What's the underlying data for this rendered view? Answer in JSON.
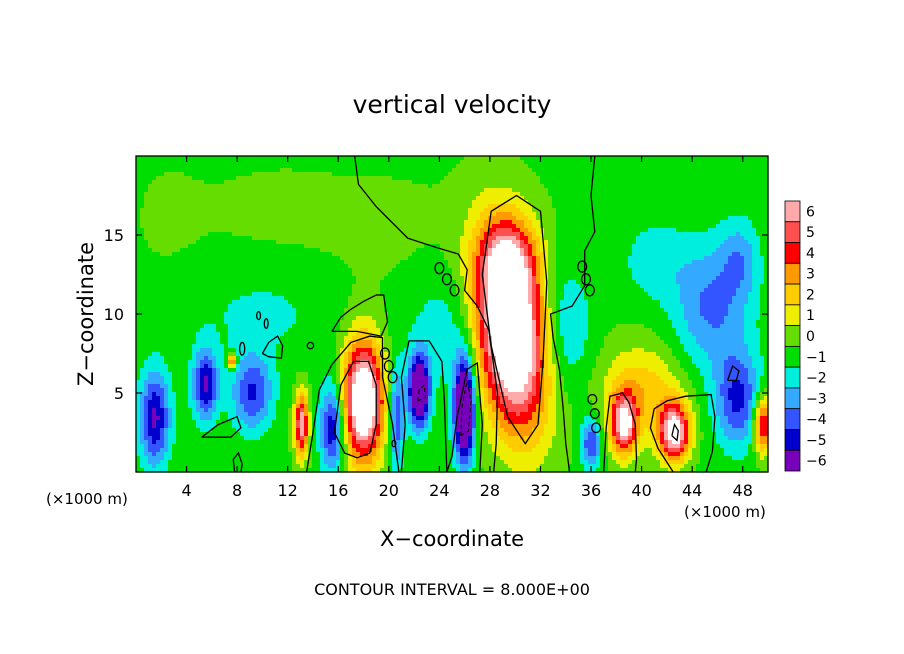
{
  "chart_data": {
    "type": "heatmap",
    "title": "vertical velocity",
    "xlabel": "X−coordinate",
    "ylabel": "Z−coordinate",
    "x_unit_left": "(×1000 m)",
    "x_unit_right": "(×1000 m)",
    "xlim": [
      0,
      50
    ],
    "ylim": [
      0,
      20
    ],
    "x_ticks": [
      {
        "value": 4,
        "label": "4"
      },
      {
        "value": 8,
        "label": "8"
      },
      {
        "value": 12,
        "label": "12"
      },
      {
        "value": 16,
        "label": "16"
      },
      {
        "value": 20,
        "label": "20"
      },
      {
        "value": 24,
        "label": "24"
      },
      {
        "value": 28,
        "label": "28"
      },
      {
        "value": 32,
        "label": "32"
      },
      {
        "value": 36,
        "label": "36"
      },
      {
        "value": 40,
        "label": "40"
      },
      {
        "value": 44,
        "label": "44"
      },
      {
        "value": 48,
        "label": "48"
      }
    ],
    "y_ticks": [
      {
        "value": 5,
        "label": "5"
      },
      {
        "value": 10,
        "label": "10"
      },
      {
        "value": 15,
        "label": "15"
      }
    ],
    "footer": "CONTOUR INTERVAL = 8.000E+00",
    "colorbar": {
      "min": -6,
      "max": 6,
      "labels": [
        {
          "value": 6,
          "label": "6"
        },
        {
          "value": 5,
          "label": "5"
        },
        {
          "value": 4,
          "label": "4"
        },
        {
          "value": 3,
          "label": "3"
        },
        {
          "value": 2,
          "label": "2"
        },
        {
          "value": 1,
          "label": "1"
        },
        {
          "value": 0,
          "label": "0"
        },
        {
          "value": -1,
          "label": "−1"
        },
        {
          "value": -2,
          "label": "−2"
        },
        {
          "value": -3,
          "label": "−3"
        },
        {
          "value": -4,
          "label": "−4"
        },
        {
          "value": -5,
          "label": "−5"
        },
        {
          "value": -6,
          "label": "−6"
        }
      ],
      "bands": [
        {
          "from": 5.5,
          "to": 6.5,
          "color": "#ffaaaa"
        },
        {
          "from": 4.5,
          "to": 5.5,
          "color": "#ff5050"
        },
        {
          "from": 3.5,
          "to": 4.5,
          "color": "#ff0000"
        },
        {
          "from": 2.5,
          "to": 3.5,
          "color": "#ff9900"
        },
        {
          "from": 1.5,
          "to": 2.5,
          "color": "#ffcc00"
        },
        {
          "from": 0.5,
          "to": 1.5,
          "color": "#eeee00"
        },
        {
          "from": -0.5,
          "to": 0.5,
          "color": "#66dd00"
        },
        {
          "from": -1.5,
          "to": -0.5,
          "color": "#00dd00"
        },
        {
          "from": -2.5,
          "to": -1.5,
          "color": "#00eedd"
        },
        {
          "from": -3.5,
          "to": -2.5,
          "color": "#33aaff"
        },
        {
          "from": -4.5,
          "to": -3.5,
          "color": "#3355ff"
        },
        {
          "from": -5.5,
          "to": -4.5,
          "color": "#0000cc"
        },
        {
          "from": -6.5,
          "to": -5.5,
          "color": "#7700bb"
        }
      ]
    },
    "background_value": -0.7,
    "features": [
      {
        "x": 29.6,
        "z": 8.8,
        "rx": 2.7,
        "rz": 6.0,
        "amp": 11,
        "tilt": 6
      },
      {
        "x": 29.6,
        "z": 13.2,
        "rx": 2.2,
        "rz": 2.8,
        "amp": 4
      },
      {
        "x": 18.0,
        "z": 4.5,
        "rx": 1.6,
        "rz": 3.8,
        "amp": 10
      },
      {
        "x": 13.1,
        "z": 3.0,
        "rx": 0.55,
        "rz": 2.0,
        "amp": 7
      },
      {
        "x": 38.6,
        "z": 3.0,
        "rx": 1.0,
        "rz": 1.9,
        "amp": 7
      },
      {
        "x": 42.6,
        "z": 2.5,
        "rx": 1.2,
        "rz": 1.8,
        "amp": 8
      },
      {
        "x": 40.0,
        "z": 5.0,
        "rx": 3.2,
        "rz": 3.0,
        "amp": 3
      },
      {
        "x": 49.6,
        "z": 3.0,
        "rx": 0.7,
        "rz": 1.8,
        "amp": 6
      },
      {
        "x": 7.6,
        "z": 7.0,
        "rx": 0.35,
        "rz": 0.4,
        "amp": 6
      },
      {
        "x": 26.0,
        "z": 3.9,
        "rx": 0.8,
        "rz": 3.2,
        "amp": -9
      },
      {
        "x": 22.4,
        "z": 5.1,
        "rx": 0.8,
        "rz": 2.2,
        "amp": -8
      },
      {
        "x": 1.5,
        "z": 3.4,
        "rx": 1.2,
        "rz": 3.0,
        "amp": -5
      },
      {
        "x": 5.5,
        "z": 5.5,
        "rx": 1.0,
        "rz": 2.2,
        "amp": -5
      },
      {
        "x": 9.2,
        "z": 5.0,
        "rx": 1.6,
        "rz": 2.4,
        "amp": -4
      },
      {
        "x": 15.6,
        "z": 2.8,
        "rx": 1.0,
        "rz": 2.8,
        "amp": -5
      },
      {
        "x": 20.6,
        "z": 3.4,
        "rx": 0.6,
        "rz": 3.2,
        "amp": -4
      },
      {
        "x": 36.0,
        "z": 1.8,
        "rx": 0.8,
        "rz": 1.6,
        "amp": -4
      },
      {
        "x": 47.6,
        "z": 4.6,
        "rx": 1.8,
        "rz": 3.0,
        "amp": -4
      },
      {
        "x": 45.5,
        "z": 10.5,
        "rx": 3.0,
        "rz": 4.0,
        "amp": -3
      },
      {
        "x": 47.8,
        "z": 13.5,
        "rx": 1.5,
        "rz": 2.5,
        "amp": -2
      },
      {
        "x": 41.0,
        "z": 13.5,
        "rx": 2.5,
        "rz": 2.5,
        "amp": -1.5
      },
      {
        "x": 34.0,
        "z": 9.0,
        "rx": 2.0,
        "rz": 4.0,
        "amp": -2
      },
      {
        "x": 25.0,
        "z": 9.0,
        "rx": 3.5,
        "rz": 4.0,
        "amp": -1.5
      },
      {
        "x": 10.0,
        "z": 10.0,
        "rx": 6.0,
        "rz": 3.0,
        "amp": -1
      },
      {
        "x": 20.5,
        "z": 15.0,
        "rx": 6.0,
        "rz": 4.0,
        "amp": 0.4
      },
      {
        "x": 11.0,
        "z": 16.5,
        "rx": 6.0,
        "rz": 3.0,
        "amp": 0.4
      },
      {
        "x": 2.5,
        "z": 16.0,
        "rx": 3.0,
        "rz": 4.0,
        "amp": 0.3
      },
      {
        "x": 38.5,
        "z": 17.5,
        "rx": 4.0,
        "rz": 3.0,
        "amp": 0.2
      }
    ],
    "contours_solid": [
      [
        [
          17.3,
          20
        ],
        [
          17.6,
          18.2
        ],
        [
          19.0,
          16.8
        ],
        [
          21.5,
          14.8
        ],
        [
          23.8,
          14.2
        ],
        [
          25.5,
          13.8
        ],
        [
          26.2,
          12.8
        ],
        [
          26.0,
          11.5
        ],
        [
          27.0,
          10.5
        ],
        [
          27.9,
          9.0
        ],
        [
          28.6,
          5.0
        ],
        [
          28.5,
          1.8
        ],
        [
          28.3,
          0
        ]
      ],
      [
        [
          34.3,
          0
        ],
        [
          34.0,
          1.8
        ],
        [
          33.8,
          4.0
        ],
        [
          33.5,
          6.5
        ],
        [
          33.0,
          8.5
        ],
        [
          32.8,
          10.0
        ],
        [
          34.5,
          10.5
        ],
        [
          35.5,
          11.8
        ],
        [
          35.5,
          14.0
        ],
        [
          36.3,
          15.2
        ],
        [
          36.0,
          17.5
        ],
        [
          36.3,
          20
        ]
      ],
      [
        [
          27.4,
          12.5
        ],
        [
          28.1,
          16.5
        ],
        [
          30.1,
          17.5
        ],
        [
          32.0,
          16.5
        ],
        [
          32.5,
          12.0
        ],
        [
          32.2,
          7.0
        ],
        [
          31.8,
          3.0
        ],
        [
          30.8,
          1.8
        ],
        [
          29.4,
          3.5
        ],
        [
          28.1,
          8.0
        ],
        [
          27.4,
          12.5
        ]
      ],
      [
        [
          15.7,
          2.5
        ],
        [
          16.2,
          5.5
        ],
        [
          17.2,
          7.0
        ],
        [
          18.4,
          7.0
        ],
        [
          19.0,
          5.5
        ],
        [
          19.0,
          3.0
        ],
        [
          18.5,
          1.2
        ],
        [
          17.5,
          0.9
        ],
        [
          16.5,
          1.2
        ],
        [
          15.7,
          2.5
        ]
      ],
      [
        [
          13.5,
          0
        ],
        [
          14.0,
          2.5
        ],
        [
          14.5,
          5.2
        ],
        [
          15.5,
          6.8
        ],
        [
          17.0,
          8.2
        ],
        [
          18.5,
          8.6
        ],
        [
          19.5,
          8.5
        ],
        [
          19.5,
          6.0
        ],
        [
          20.3,
          3.0
        ],
        [
          20.8,
          0
        ]
      ],
      [
        [
          15.5,
          8.9
        ],
        [
          16.2,
          9.8
        ],
        [
          17.0,
          10.3
        ],
        [
          18.0,
          10.8
        ],
        [
          19.0,
          11.2
        ],
        [
          19.6,
          11.2
        ],
        [
          19.9,
          9.5
        ],
        [
          19.4,
          8.6
        ],
        [
          17.5,
          8.9
        ],
        [
          15.5,
          8.9
        ]
      ],
      [
        [
          21.0,
          0
        ],
        [
          21.3,
          3.0
        ],
        [
          21.0,
          6.0
        ],
        [
          21.6,
          8.3
        ],
        [
          23.2,
          8.3
        ],
        [
          24.2,
          7.0
        ],
        [
          24.4,
          4.5
        ],
        [
          24.5,
          2.0
        ],
        [
          24.6,
          0
        ]
      ],
      [
        [
          24.6,
          0
        ],
        [
          25.0,
          1.0
        ],
        [
          25.4,
          3.5
        ],
        [
          26.2,
          6.5
        ],
        [
          27.0,
          6.9
        ],
        [
          27.4,
          3.0
        ],
        [
          27.2,
          0
        ]
      ],
      [
        [
          42.5,
          0
        ],
        [
          41.3,
          1.5
        ],
        [
          40.7,
          2.8
        ],
        [
          41.0,
          4.0
        ],
        [
          42.0,
          4.5
        ],
        [
          43.5,
          4.8
        ],
        [
          45.5,
          4.9
        ],
        [
          45.8,
          3.5
        ],
        [
          45.6,
          1.3
        ],
        [
          45.1,
          0
        ]
      ],
      [
        [
          37.0,
          0
        ],
        [
          37.2,
          2.8
        ],
        [
          37.5,
          4.8
        ],
        [
          38.5,
          5.0
        ],
        [
          39.0,
          4.4
        ],
        [
          39.5,
          3.0
        ],
        [
          39.6,
          0.8
        ],
        [
          39.5,
          0
        ]
      ],
      [
        [
          5.2,
          2.2
        ],
        [
          6.5,
          3.0
        ],
        [
          8.0,
          3.5
        ],
        [
          8.3,
          2.8
        ],
        [
          7.5,
          2.2
        ],
        [
          5.2,
          2.2
        ]
      ],
      [
        [
          7.8,
          0
        ],
        [
          7.7,
          0.8
        ],
        [
          8.1,
          1.2
        ],
        [
          8.4,
          0.5
        ],
        [
          8.3,
          0
        ]
      ],
      [
        [
          10.0,
          7.5
        ],
        [
          10.5,
          7.3
        ],
        [
          11.5,
          7.2
        ],
        [
          11.6,
          8.0
        ],
        [
          11.2,
          8.6
        ],
        [
          10.5,
          8.2
        ],
        [
          10.0,
          7.5
        ]
      ],
      [
        [
          46.8,
          5.8
        ],
        [
          47.2,
          6.7
        ],
        [
          47.7,
          6.4
        ],
        [
          47.5,
          5.8
        ],
        [
          46.8,
          5.8
        ]
      ],
      [
        [
          42.4,
          2.3
        ],
        [
          42.6,
          3.0
        ],
        [
          42.9,
          2.6
        ],
        [
          42.8,
          2.0
        ],
        [
          42.4,
          2.3
        ]
      ]
    ],
    "contours_dashed": [
      [
        [
          25.7,
          2.3
        ],
        [
          25.8,
          4.2
        ],
        [
          26.2,
          5.8
        ],
        [
          26.5,
          4.5
        ],
        [
          26.3,
          2.6
        ],
        [
          25.7,
          2.3
        ]
      ],
      [
        [
          22.3,
          4.5
        ],
        [
          22.4,
          5.2
        ],
        [
          22.8,
          5.5
        ],
        [
          22.9,
          4.7
        ],
        [
          22.3,
          4.5
        ]
      ]
    ],
    "contour_loops": [
      {
        "x": 24.0,
        "z": 12.9,
        "rx": 0.35,
        "rz": 0.35
      },
      {
        "x": 24.6,
        "z": 12.2,
        "rx": 0.35,
        "rz": 0.35
      },
      {
        "x": 25.2,
        "z": 11.5,
        "rx": 0.35,
        "rz": 0.35
      },
      {
        "x": 19.7,
        "z": 7.5,
        "rx": 0.35,
        "rz": 0.35
      },
      {
        "x": 20.0,
        "z": 6.7,
        "rx": 0.35,
        "rz": 0.35
      },
      {
        "x": 20.3,
        "z": 6.0,
        "rx": 0.35,
        "rz": 0.35
      },
      {
        "x": 35.3,
        "z": 13.0,
        "rx": 0.35,
        "rz": 0.35
      },
      {
        "x": 35.6,
        "z": 12.2,
        "rx": 0.35,
        "rz": 0.35
      },
      {
        "x": 35.9,
        "z": 11.5,
        "rx": 0.35,
        "rz": 0.35
      },
      {
        "x": 36.1,
        "z": 4.6,
        "rx": 0.35,
        "rz": 0.3
      },
      {
        "x": 36.3,
        "z": 3.7,
        "rx": 0.35,
        "rz": 0.3
      },
      {
        "x": 36.4,
        "z": 2.8,
        "rx": 0.35,
        "rz": 0.3
      },
      {
        "x": 9.7,
        "z": 9.9,
        "rx": 0.15,
        "rz": 0.25
      },
      {
        "x": 10.3,
        "z": 9.4,
        "rx": 0.15,
        "rz": 0.3
      },
      {
        "x": 8.4,
        "z": 7.8,
        "rx": 0.2,
        "rz": 0.4
      },
      {
        "x": 13.8,
        "z": 8.0,
        "rx": 0.25,
        "rz": 0.2
      },
      {
        "x": 20.4,
        "z": 1.8,
        "rx": 0.15,
        "rz": 0.2
      }
    ]
  }
}
